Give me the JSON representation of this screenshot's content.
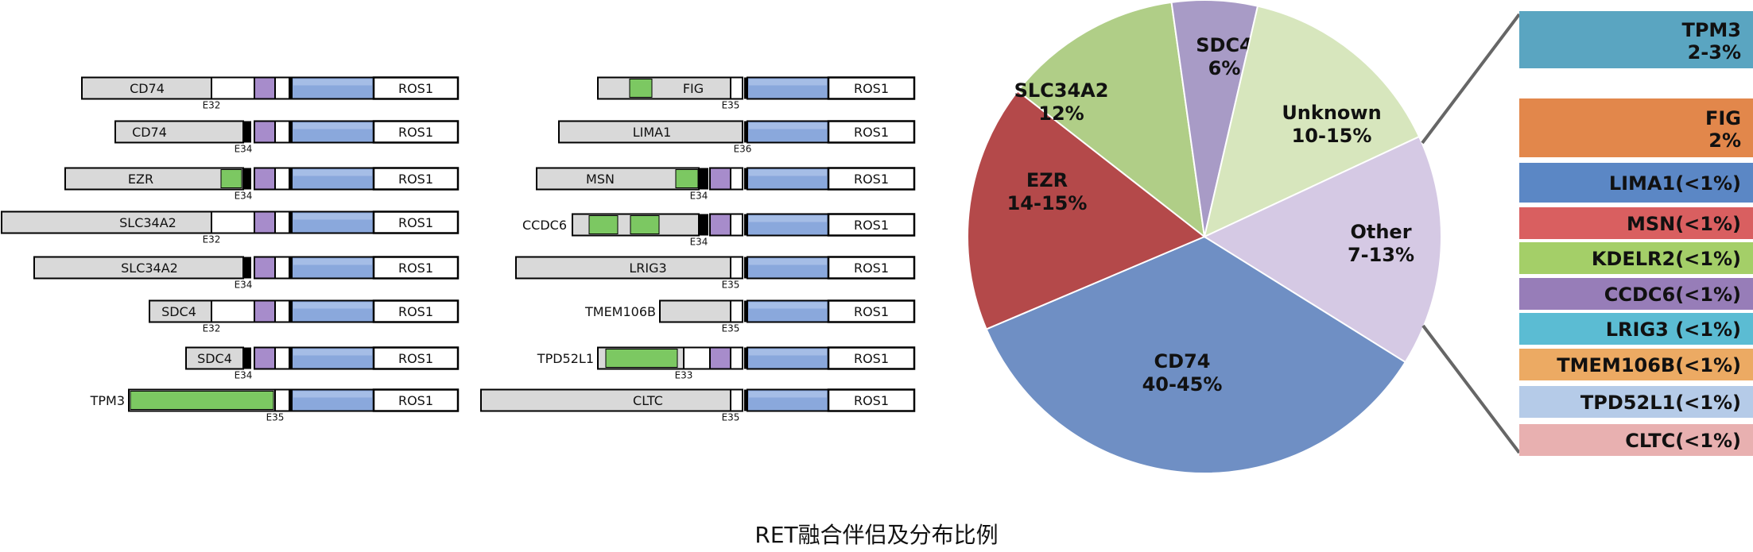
{
  "caption": "RET融合伴侣及分布比例",
  "fusion_left": [
    {
      "partner": "CD74",
      "exon": "E32"
    },
    {
      "partner": "CD74",
      "exon": "E34"
    },
    {
      "partner": "EZR",
      "exon": "E34"
    },
    {
      "partner": "SLC34A2",
      "exon": "E32"
    },
    {
      "partner": "SLC34A2",
      "exon": "E34"
    },
    {
      "partner": "SDC4",
      "exon": "E32"
    },
    {
      "partner": "SDC4",
      "exon": "E34"
    },
    {
      "partner": "TPM3",
      "exon": "E35"
    }
  ],
  "fusion_right": [
    {
      "partner": "FIG",
      "exon": "E35"
    },
    {
      "partner": "LIMA1",
      "exon": "E36"
    },
    {
      "partner": "MSN",
      "exon": "E34"
    },
    {
      "partner": "CCDC6",
      "exon": "E34"
    },
    {
      "partner": "LRIG3",
      "exon": "E35"
    },
    {
      "partner": "TMEM106B",
      "exon": "E35"
    },
    {
      "partner": "TPD52L1",
      "exon": "E33"
    },
    {
      "partner": "CLTC",
      "exon": "E35"
    }
  ],
  "kinase_label": "ROS1",
  "colors": {
    "partner": "#d9d9d9",
    "coiled_coil": "#7cc862",
    "tm": "#a78ccb",
    "kinase": "#8aa8dc",
    "outline": "#000000"
  },
  "pie": {
    "slices": [
      {
        "name": "CD74",
        "label": "40-45%",
        "color": "#6f8fc4"
      },
      {
        "name": "EZR",
        "label": "14-15%",
        "color": "#b4494a"
      },
      {
        "name": "SLC34A2",
        "label": "12%",
        "color": "#b0ce87"
      },
      {
        "name": "SDC4",
        "label": "6%",
        "color": "#a89bc6"
      },
      {
        "name": "Unknown",
        "label": "10-15%",
        "color": "#d7e6bd"
      },
      {
        "name": "Other",
        "label": "7-13%",
        "color": "#d5c9e4"
      }
    ]
  },
  "other_breakdown": [
    {
      "name": "TPM3",
      "label": "2-3%",
      "color": "#5aa5c1"
    },
    {
      "name": "FIG",
      "label": "2%",
      "color": "#e2874b"
    },
    {
      "name": "LIMA1(<1%)",
      "label": "",
      "color": "#5b87c5"
    },
    {
      "name": "MSN(<1%)",
      "label": "",
      "color": "#d95f60"
    },
    {
      "name": "KDELR2(<1%)",
      "label": "",
      "color": "#a4cf68"
    },
    {
      "name": "CCDC6(<1%)",
      "label": "",
      "color": "#977db8"
    },
    {
      "name": "LRIG3 (<1%)",
      "label": "",
      "color": "#5bbcd3"
    },
    {
      "name": "TMEM106B(<1%)",
      "label": "",
      "color": "#ecaa63"
    },
    {
      "name": "TPD52L1(<1%)",
      "label": "",
      "color": "#b5cbe8"
    },
    {
      "name": "CLTC(<1%)",
      "label": "",
      "color": "#e8b0b0"
    }
  ]
}
